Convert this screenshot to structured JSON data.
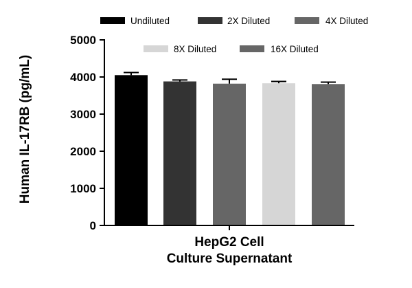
{
  "chart_data": {
    "type": "bar",
    "ylabel": "Human IL-17RB (pg/mL)",
    "xlabel_lines": [
      "HepG2 Cell",
      "Culture Supernatant"
    ],
    "ylim": [
      0,
      5000
    ],
    "yticks": [
      0,
      1000,
      2000,
      3000,
      4000,
      5000
    ],
    "series": [
      {
        "name": "Undiluted",
        "value": 4050,
        "error": 70,
        "color": "#000000"
      },
      {
        "name": "2X Diluted",
        "value": 3880,
        "error": 40,
        "color": "#333333"
      },
      {
        "name": "4X Diluted",
        "value": 3820,
        "error": 120,
        "color": "#666666"
      },
      {
        "name": "8X Diluted",
        "value": 3830,
        "error": 50,
        "color": "#d6d6d6"
      },
      {
        "name": "16X Diluted",
        "value": 3810,
        "error": 50,
        "color": "#666666"
      }
    ],
    "legend_placement": "top"
  }
}
